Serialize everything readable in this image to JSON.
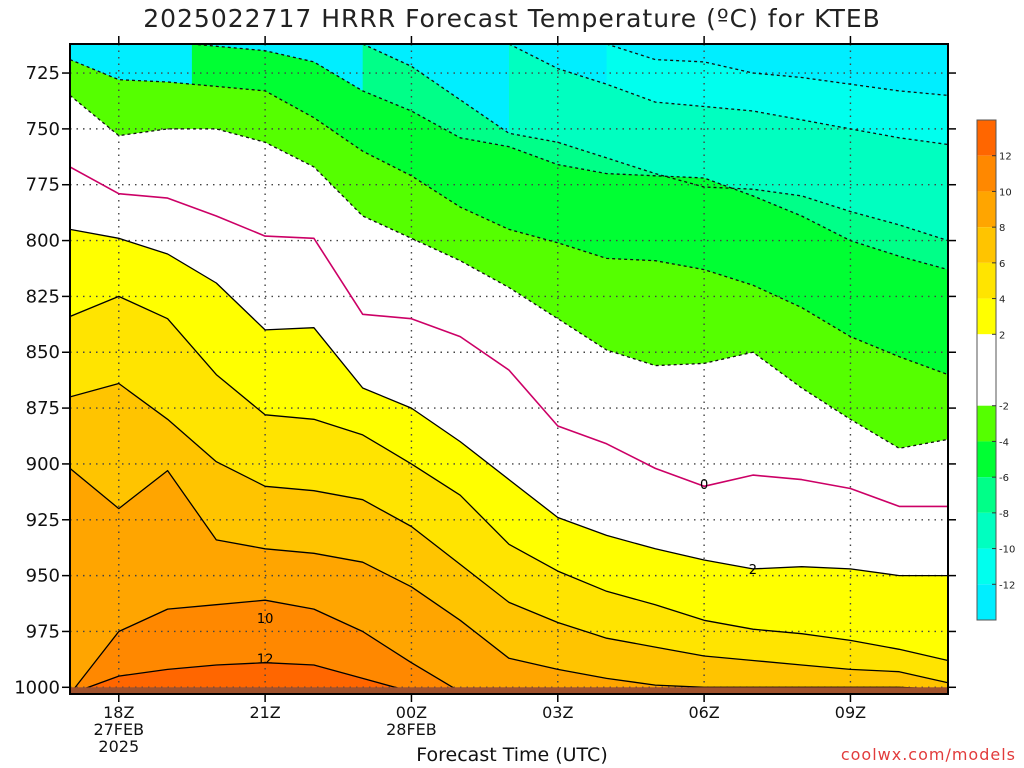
{
  "chart_data": {
    "type": "heatmap",
    "title": "2025022717 HRRR Forecast Temperature (ºC) for KTEB",
    "xlabel": "Forecast Time (UTC)",
    "ylabel": "",
    "y_axis": {
      "ticks": [
        725,
        750,
        775,
        800,
        825,
        850,
        875,
        900,
        925,
        950,
        975,
        1000
      ],
      "range": [
        1003,
        712
      ],
      "unit": "hPa"
    },
    "x_axis": {
      "range_hours": [
        -1,
        17
      ],
      "ticks": [
        {
          "h": 0,
          "lines": [
            "18Z",
            "27FEB",
            "2025"
          ]
        },
        {
          "h": 3,
          "lines": [
            "21Z"
          ]
        },
        {
          "h": 6,
          "lines": [
            "00Z",
            "28FEB"
          ]
        },
        {
          "h": 9,
          "lines": [
            "03Z"
          ]
        },
        {
          "h": 12,
          "lines": [
            "06Z"
          ]
        },
        {
          "h": 15,
          "lines": [
            "09Z"
          ]
        }
      ]
    },
    "contour_levels": [
      -12,
      -10,
      -8,
      -6,
      -4,
      -2,
      0,
      2,
      4,
      6,
      8,
      10,
      12
    ],
    "colorbar": {
      "ticks": [
        12,
        10,
        8,
        6,
        4,
        2,
        -2,
        -4,
        -6,
        -8,
        -10,
        -12
      ],
      "bins": [
        {
          "from": 12,
          "to": 14,
          "color": "#ff6600"
        },
        {
          "from": 10,
          "to": 12,
          "color": "#ff8800"
        },
        {
          "from": 8,
          "to": 10,
          "color": "#ffa500"
        },
        {
          "from": 6,
          "to": 8,
          "color": "#ffc400"
        },
        {
          "from": 4,
          "to": 6,
          "color": "#ffe400"
        },
        {
          "from": 2,
          "to": 4,
          "color": "#ffff00"
        },
        {
          "from": -2,
          "to": 2,
          "color": "#ffffff"
        },
        {
          "from": -4,
          "to": -2,
          "color": "#55ff00"
        },
        {
          "from": -6,
          "to": -4,
          "color": "#00ff33"
        },
        {
          "from": -8,
          "to": -6,
          "color": "#00ff88"
        },
        {
          "from": -10,
          "to": -8,
          "color": "#00ffc0"
        },
        {
          "from": -12,
          "to": -10,
          "color": "#00ffee"
        },
        {
          "from": -14,
          "to": -12,
          "color": "#00eeff"
        }
      ]
    },
    "contour_labels": [
      {
        "value": "0",
        "h": 12.0,
        "p": 909
      },
      {
        "value": "2",
        "h": 13.0,
        "p": 947
      },
      {
        "value": "10",
        "h": 3.0,
        "p": 969
      },
      {
        "value": "12",
        "h": 3.0,
        "p": 987
      }
    ],
    "contours": {
      "fill_order": [
        -12,
        -10,
        -8,
        -6,
        -4,
        -2,
        2,
        4,
        6,
        8,
        10,
        12
      ],
      "lines": {
        "-12": {
          "style": "dashed",
          "color": "#111111",
          "pts": [
            [
              10,
              712
            ],
            [
              11,
              719
            ],
            [
              12,
              720
            ],
            [
              13,
              725
            ],
            [
              14,
              727
            ],
            [
              15,
              730
            ],
            [
              16,
              733
            ],
            [
              17,
              735
            ]
          ]
        },
        "-10": {
          "style": "dashed",
          "color": "#111111",
          "pts": [
            [
              8,
              712
            ],
            [
              9,
              723
            ],
            [
              10,
              730
            ],
            [
              11,
              738
            ],
            [
              12,
              740
            ],
            [
              13,
              742
            ],
            [
              14,
              746
            ],
            [
              15,
              750
            ],
            [
              16,
              754
            ],
            [
              17,
              757
            ]
          ]
        },
        "-8": {
          "style": "dashed",
          "color": "#111111",
          "pts": [
            [
              5,
              712
            ],
            [
              6,
              722
            ],
            [
              7,
              737
            ],
            [
              8,
              752
            ],
            [
              9,
              756
            ],
            [
              10,
              763
            ],
            [
              11,
              770
            ],
            [
              12,
              776
            ],
            [
              13,
              777
            ],
            [
              14,
              780
            ],
            [
              15,
              787
            ],
            [
              16,
              793
            ],
            [
              17,
              800
            ]
          ]
        },
        "-6": {
          "style": "dashed",
          "color": "#111111",
          "pts": [
            [
              1.5,
              712
            ],
            [
              3,
              715
            ],
            [
              4,
              720
            ],
            [
              5,
              733
            ],
            [
              6,
              742
            ],
            [
              7,
              754
            ],
            [
              8,
              758
            ],
            [
              9,
              766
            ],
            [
              10,
              770
            ],
            [
              11,
              771
            ],
            [
              12,
              772
            ],
            [
              13,
              780
            ],
            [
              14,
              789
            ],
            [
              15,
              800
            ],
            [
              16,
              807
            ],
            [
              17,
              813
            ]
          ]
        },
        "-4": {
          "style": "dashed",
          "color": "#111111",
          "pts": [
            [
              -1,
              719
            ],
            [
              0,
              728
            ],
            [
              1,
              729
            ],
            [
              2,
              731
            ],
            [
              3,
              733
            ],
            [
              4,
              745
            ],
            [
              5,
              760
            ],
            [
              6,
              771
            ],
            [
              7,
              785
            ],
            [
              8,
              795
            ],
            [
              9,
              801
            ],
            [
              10,
              808
            ],
            [
              11,
              809
            ],
            [
              12,
              813
            ],
            [
              13,
              820
            ],
            [
              14,
              830
            ],
            [
              15,
              843
            ],
            [
              16,
              852
            ],
            [
              17,
              860
            ]
          ]
        },
        "-2": {
          "style": "dashed",
          "color": "#111111",
          "pts": [
            [
              -1,
              735
            ],
            [
              0,
              753
            ],
            [
              1,
              750
            ],
            [
              2,
              750
            ],
            [
              3,
              756
            ],
            [
              4,
              767
            ],
            [
              5,
              789
            ],
            [
              6,
              799
            ],
            [
              7,
              809
            ],
            [
              8,
              821
            ],
            [
              9,
              835
            ],
            [
              10,
              849
            ],
            [
              11,
              856
            ],
            [
              12,
              855
            ],
            [
              13,
              850
            ],
            [
              14,
              866
            ],
            [
              15,
              880
            ],
            [
              16,
              893
            ],
            [
              17,
              889
            ]
          ]
        },
        "0": {
          "style": "solid",
          "color": "#cc0066",
          "pts": [
            [
              -1,
              767
            ],
            [
              0,
              779
            ],
            [
              1,
              781
            ],
            [
              2,
              789
            ],
            [
              3,
              798
            ],
            [
              4,
              799
            ],
            [
              5,
              833
            ],
            [
              6,
              835
            ],
            [
              7,
              843
            ],
            [
              8,
              858
            ],
            [
              9,
              883
            ],
            [
              10,
              891
            ],
            [
              11,
              902
            ],
            [
              12,
              910
            ],
            [
              13,
              905
            ],
            [
              14,
              907
            ],
            [
              15,
              911
            ],
            [
              16,
              919
            ],
            [
              17,
              919
            ]
          ]
        },
        "2": {
          "style": "solid",
          "color": "#000000",
          "pts": [
            [
              -1,
              795
            ],
            [
              0,
              799
            ],
            [
              1,
              806
            ],
            [
              2,
              819
            ],
            [
              3,
              840
            ],
            [
              4,
              839
            ],
            [
              5,
              866
            ],
            [
              6,
              875
            ],
            [
              7,
              890
            ],
            [
              8,
              907
            ],
            [
              9,
              924
            ],
            [
              10,
              932
            ],
            [
              11,
              938
            ],
            [
              12,
              943
            ],
            [
              13,
              947
            ],
            [
              14,
              946
            ],
            [
              15,
              947
            ],
            [
              16,
              950
            ],
            [
              17,
              950
            ]
          ]
        },
        "4": {
          "style": "solid",
          "color": "#000000",
          "pts": [
            [
              -1,
              834
            ],
            [
              0,
              825
            ],
            [
              1,
              835
            ],
            [
              2,
              860
            ],
            [
              3,
              878
            ],
            [
              4,
              880
            ],
            [
              5,
              887
            ],
            [
              6,
              900
            ],
            [
              7,
              914
            ],
            [
              8,
              936
            ],
            [
              9,
              948
            ],
            [
              10,
              957
            ],
            [
              11,
              963
            ],
            [
              12,
              970
            ],
            [
              13,
              974
            ],
            [
              14,
              976
            ],
            [
              15,
              979
            ],
            [
              16,
              983
            ],
            [
              17,
              988
            ]
          ]
        },
        "6": {
          "style": "solid",
          "color": "#000000",
          "pts": [
            [
              -1,
              870
            ],
            [
              0,
              864
            ],
            [
              1,
              880
            ],
            [
              2,
              899
            ],
            [
              3,
              910
            ],
            [
              4,
              912
            ],
            [
              5,
              916
            ],
            [
              6,
              928
            ],
            [
              7,
              945
            ],
            [
              8,
              962
            ],
            [
              9,
              971
            ],
            [
              10,
              978
            ],
            [
              11,
              982
            ],
            [
              12,
              986
            ],
            [
              13,
              988
            ],
            [
              14,
              990
            ],
            [
              15,
              992
            ],
            [
              16,
              993
            ],
            [
              17,
              998
            ]
          ]
        },
        "8": {
          "style": "solid",
          "color": "#000000",
          "pts": [
            [
              -1,
              902
            ],
            [
              0,
              920
            ],
            [
              1,
              903
            ],
            [
              2,
              934
            ],
            [
              3,
              938
            ],
            [
              4,
              940
            ],
            [
              5,
              944
            ],
            [
              6,
              955
            ],
            [
              7,
              970
            ],
            [
              8,
              987
            ],
            [
              9,
              992
            ],
            [
              10,
              996
            ],
            [
              11,
              999
            ],
            [
              12,
              1000
            ],
            [
              13,
              1000
            ],
            [
              14,
              1000
            ],
            [
              15,
              1000
            ],
            [
              16,
              1000
            ],
            [
              17,
              1001
            ]
          ]
        },
        "10": {
          "style": "solid",
          "color": "#000000",
          "pts": [
            [
              -1,
              1003
            ],
            [
              0,
              975
            ],
            [
              1,
              965
            ],
            [
              2,
              963
            ],
            [
              3,
              961
            ],
            [
              4,
              965
            ],
            [
              5,
              975
            ],
            [
              6,
              989
            ],
            [
              7,
              1002
            ],
            [
              17,
              1003
            ]
          ]
        },
        "12": {
          "style": "solid",
          "color": "#000000",
          "pts": [
            [
              -1,
              1003
            ],
            [
              0,
              995
            ],
            [
              1,
              992
            ],
            [
              2,
              990
            ],
            [
              3,
              989
            ],
            [
              4,
              990
            ],
            [
              5,
              996
            ],
            [
              6,
              1002
            ],
            [
              7,
              1003
            ],
            [
              17,
              1003
            ]
          ]
        }
      }
    },
    "ground": {
      "color": "#a0522d",
      "p_top": 1000
    },
    "grid": true
  },
  "footer": {
    "credit": "coolwx.com/models"
  }
}
